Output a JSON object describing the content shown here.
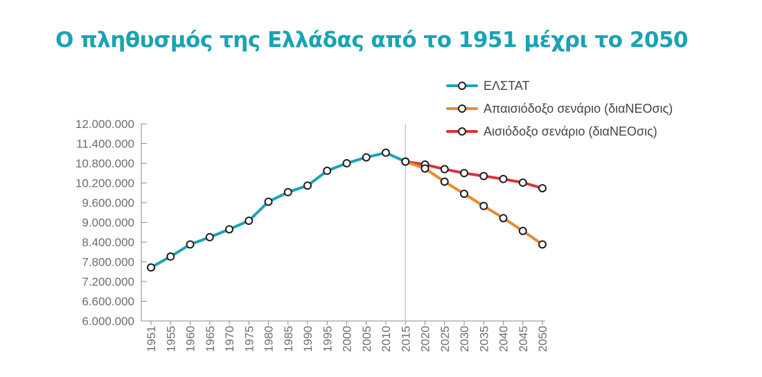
{
  "colors": {
    "title": "#1aa3b5",
    "axis": "#8a8a8a",
    "divider": "#c8c8c8",
    "marker_fill": "#ffffff",
    "marker_stroke": "#1e1e1e"
  },
  "chart_data": {
    "type": "line",
    "title": "Ο πληθυσμός της Ελλάδας από το 1951 μέχρι το 2050",
    "xlabel": "",
    "ylabel": "",
    "x_ticks": [
      "1951",
      "1955",
      "1960",
      "1965",
      "1970",
      "1975",
      "1980",
      "1985",
      "1990",
      "1995",
      "2000",
      "2005",
      "2010",
      "2015",
      "2020",
      "2025",
      "2030",
      "2035",
      "2040",
      "2045",
      "2050"
    ],
    "y_ticks": [
      "6.000.000",
      "6.600.000",
      "7.200.000",
      "7.800.000",
      "8.400.000",
      "9.000.000",
      "9.600.000",
      "10.200.000",
      "10.800.000",
      "11.400.000",
      "12.000.000"
    ],
    "ylim": [
      6000000,
      12000000
    ],
    "y_step": 600000,
    "divider_at": "2015",
    "grid": false,
    "legend_position": "top-right",
    "series": [
      {
        "name": "ΕΛΣΤΑΤ",
        "color": "#1aa3b5",
        "points": [
          {
            "x": "1951",
            "y": 7630000
          },
          {
            "x": "1955",
            "y": 7960000
          },
          {
            "x": "1960",
            "y": 8330000
          },
          {
            "x": "1965",
            "y": 8550000
          },
          {
            "x": "1970",
            "y": 8790000
          },
          {
            "x": "1975",
            "y": 9050000
          },
          {
            "x": "1980",
            "y": 9630000
          },
          {
            "x": "1985",
            "y": 9920000
          },
          {
            "x": "1990",
            "y": 10120000
          },
          {
            "x": "1995",
            "y": 10570000
          },
          {
            "x": "2000",
            "y": 10800000
          },
          {
            "x": "2005",
            "y": 10980000
          },
          {
            "x": "2010",
            "y": 11120000
          },
          {
            "x": "2015",
            "y": 10850000
          }
        ]
      },
      {
        "name": "Απαισιόδοξο σενάριο (διαΝΕΟσις)",
        "color": "#e98a2e",
        "points": [
          {
            "x": "2015",
            "y": 10850000
          },
          {
            "x": "2020",
            "y": 10640000
          },
          {
            "x": "2025",
            "y": 10240000
          },
          {
            "x": "2030",
            "y": 9870000
          },
          {
            "x": "2035",
            "y": 9500000
          },
          {
            "x": "2040",
            "y": 9130000
          },
          {
            "x": "2045",
            "y": 8740000
          },
          {
            "x": "2050",
            "y": 8330000
          }
        ]
      },
      {
        "name": "Αισιόδοξο σενάριο (διαΝΕΟσις)",
        "color": "#d9323a",
        "points": [
          {
            "x": "2015",
            "y": 10850000
          },
          {
            "x": "2020",
            "y": 10760000
          },
          {
            "x": "2025",
            "y": 10620000
          },
          {
            "x": "2030",
            "y": 10500000
          },
          {
            "x": "2035",
            "y": 10410000
          },
          {
            "x": "2040",
            "y": 10320000
          },
          {
            "x": "2045",
            "y": 10210000
          },
          {
            "x": "2050",
            "y": 10040000
          }
        ]
      }
    ]
  }
}
